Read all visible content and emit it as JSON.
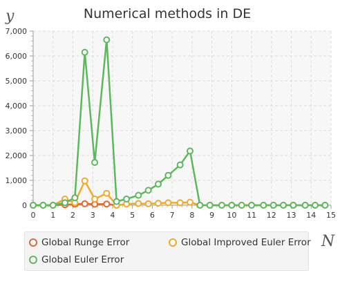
{
  "chart_data": {
    "type": "line",
    "title": "Numerical methods in DE",
    "xlabel": "N",
    "ylabel": "y",
    "xlim": [
      0,
      15
    ],
    "ylim": [
      0,
      7000
    ],
    "x_ticks": [
      "0",
      "1",
      "2",
      "3",
      "4",
      "5",
      "6",
      "7",
      "8",
      "9",
      "10",
      "11",
      "12",
      "13",
      "14",
      "15"
    ],
    "y_ticks": [
      "0",
      "1,000",
      "2,000",
      "3,000",
      "4,000",
      "5,000",
      "6,000",
      "7,000"
    ],
    "grid": true,
    "legend_position": "bottom",
    "series": [
      {
        "name": "Global Runge Error",
        "color": "#e8672d",
        "x": [
          0,
          0.5,
          1,
          1.6,
          2.1,
          2.6,
          3.1,
          3.7,
          4.2
        ],
        "y": [
          0,
          0,
          0,
          20,
          40,
          60,
          40,
          50,
          0
        ]
      },
      {
        "name": "Global Improved Euler Error",
        "color": "#f0a92a",
        "x": [
          0,
          0.5,
          1,
          1.6,
          2.1,
          2.6,
          3.1,
          3.7,
          4.2,
          4.7,
          5.3,
          5.8,
          6.3,
          6.8,
          7.4,
          7.9,
          8.4,
          8.9,
          9.5,
          10,
          10.5,
          11,
          11.6,
          12.1,
          12.6,
          13.1,
          13.7,
          14.2,
          14.7
        ],
        "y": [
          0,
          0,
          0,
          250,
          100,
          980,
          250,
          480,
          0,
          50,
          70,
          60,
          80,
          100,
          100,
          120,
          0,
          0,
          0,
          0,
          0,
          0,
          0,
          0,
          0,
          0,
          0,
          0,
          0
        ]
      },
      {
        "name": "Global Euler Error",
        "color": "#5cb85c",
        "x": [
          0,
          0.5,
          1,
          1.6,
          2.1,
          2.6,
          3.1,
          3.7,
          4.2,
          4.7,
          5.3,
          5.8,
          6.3,
          6.8,
          7.4,
          7.9,
          8.4,
          8.9,
          9.5,
          10,
          10.5,
          11,
          11.6,
          12.1,
          12.6,
          13.1,
          13.7,
          14.2,
          14.7
        ],
        "y": [
          0,
          0,
          0,
          100,
          300,
          6150,
          1720,
          6650,
          150,
          250,
          400,
          600,
          850,
          1200,
          1620,
          2180,
          0,
          0,
          0,
          0,
          0,
          0,
          0,
          0,
          0,
          0,
          0,
          0,
          0
        ]
      }
    ]
  },
  "legend": {
    "items": [
      "Global Runge Error",
      "Global Improved Euler Error",
      "Global Euler Error"
    ]
  }
}
